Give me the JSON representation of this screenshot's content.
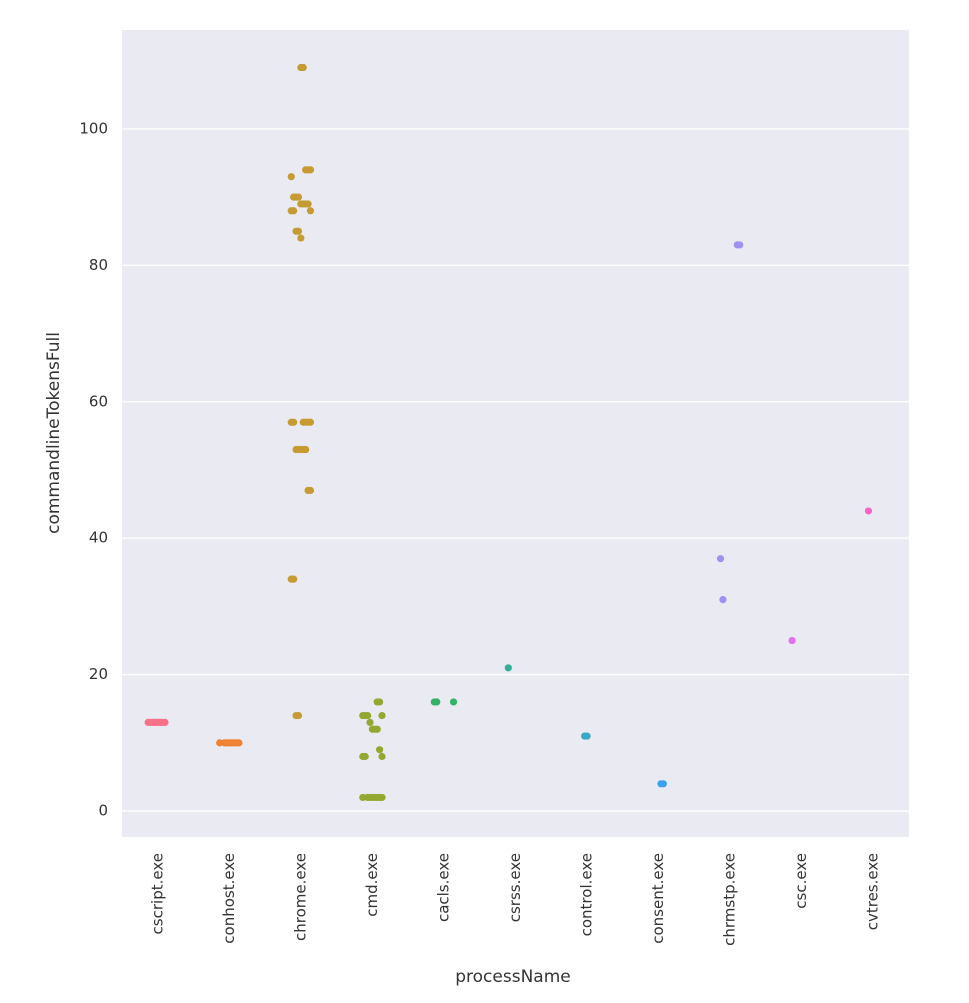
{
  "chart_data": {
    "type": "strip",
    "x_label": "processName",
    "y_label": "commandlineTokensFull",
    "categories": [
      "cscript.exe",
      "conhost.exe",
      "chrome.exe",
      "cmd.exe",
      "cacls.exe",
      "csrss.exe",
      "control.exe",
      "consent.exe",
      "chrmstp.exe",
      "csc.exe",
      "cvtres.exe"
    ],
    "colors": [
      "#f77189",
      "#ef8131",
      "#c59b32",
      "#93a831",
      "#33b166",
      "#35ac98",
      "#38a9c5",
      "#3ba3ec",
      "#9d91f4",
      "#e271f0",
      "#f568c4"
    ],
    "values": [
      [
        13,
        13,
        13,
        13,
        13,
        13,
        13,
        13
      ],
      [
        10,
        10,
        10,
        10,
        10,
        10,
        10,
        10
      ],
      [
        109,
        109,
        94,
        94,
        94,
        93,
        90,
        90,
        90,
        89,
        89,
        89,
        89,
        88,
        88,
        88,
        85,
        85,
        84,
        57,
        57,
        57,
        57,
        57,
        57,
        53,
        53,
        53,
        53,
        53,
        47,
        47,
        34,
        34,
        14,
        14
      ],
      [
        16,
        16,
        14,
        14,
        14,
        14,
        13,
        12,
        12,
        12,
        9,
        8,
        8,
        8,
        2,
        2,
        2,
        2,
        2,
        2,
        2,
        2
      ],
      [
        16,
        16,
        16
      ],
      [
        21
      ],
      [
        11,
        11
      ],
      [
        4,
        4
      ],
      [
        83,
        83,
        37,
        31
      ],
      [
        25
      ],
      [
        44
      ]
    ],
    "ylim": [
      -3.8,
      114.5
    ],
    "yticks": [
      0,
      20,
      40,
      60,
      80,
      100
    ],
    "grid": true
  }
}
